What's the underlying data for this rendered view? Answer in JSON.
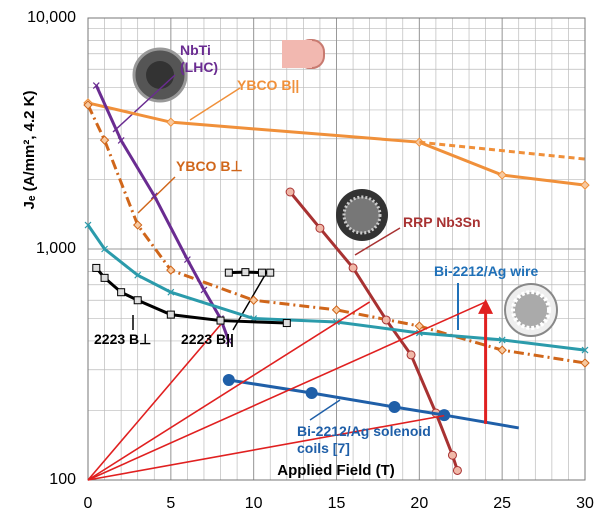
{
  "chart_data": {
    "type": "line",
    "ylabel": "Jₑ (A/mm², 4.2 K)",
    "xlabel": "Applied Field (T)",
    "xlim": [
      0,
      30
    ],
    "xticks": [
      0,
      5,
      10,
      15,
      20,
      25,
      30
    ],
    "ylim": [
      100,
      10000
    ],
    "yticks": [
      100,
      {
        "value": 1000,
        "label": "1,000"
      },
      {
        "value": 10000,
        "label": "10,000"
      }
    ],
    "log_y": true,
    "grid": true,
    "minor_grid": true,
    "series": [
      {
        "name": "YBCO B||",
        "color": "#f0903a",
        "marker": "diamond",
        "dash": "solid",
        "x": [
          0,
          5,
          20,
          25,
          30
        ],
        "values": [
          4290,
          3540,
          2900,
          2090,
          1890
        ]
      },
      {
        "color": "#f0903a",
        "marker": "none",
        "dash": "dashed",
        "x": [
          20,
          30
        ],
        "values": [
          2900,
          2450
        ]
      },
      {
        "name": "YBCO B⊥",
        "color": "#d0661a",
        "marker": "diamond",
        "dash": "dashdot",
        "x": [
          0,
          1,
          3,
          5,
          10,
          15,
          20,
          25,
          30
        ],
        "values": [
          4200,
          2960,
          1270,
          810,
          600,
          545,
          464,
          365,
          321
        ]
      },
      {
        "name": "NbTi (LHC)",
        "color": "#6a2c91",
        "marker": "x",
        "dash": "solid",
        "x": [
          0.5,
          2,
          4,
          6,
          7,
          8,
          8.5
        ],
        "values": [
          5100,
          2950,
          1700,
          900,
          665,
          500,
          400
        ]
      },
      {
        "name": "RRP Nb3Sn",
        "color": "#a83232",
        "marker": "circle",
        "dash": "solid",
        "x": [
          12.2,
          14,
          16,
          18,
          19.5,
          21,
          22,
          22.3
        ],
        "values": [
          1765,
          1230,
          828,
          493,
          348,
          195,
          128,
          110
        ]
      },
      {
        "name": "Bi-2212/Ag wire",
        "color": "#2b9bab",
        "marker": "x",
        "dash": "solid",
        "x": [
          0,
          1,
          3,
          5,
          10,
          15,
          20,
          25,
          30
        ],
        "values": [
          1270,
          1000,
          770,
          650,
          500,
          483,
          433,
          404,
          365
        ]
      },
      {
        "name": "2223 B⊥",
        "color": "#000000",
        "marker": "square",
        "dash": "solid",
        "x": [
          0.5,
          1,
          2,
          3,
          5,
          8,
          12
        ],
        "values": [
          828,
          750,
          650,
          600,
          520,
          490,
          478
        ]
      },
      {
        "name": "2223 B||",
        "color": "#000000",
        "marker": "square",
        "dash": "solid",
        "x": [
          8.5,
          9.5,
          10.5,
          11
        ],
        "values": [
          790,
          794,
          790,
          790
        ]
      },
      {
        "name": "Bi-2212/Ag solenoid coils [7]",
        "color": "#1f5fa8",
        "marker": "dot",
        "dash": "solid",
        "x": [
          8.5,
          13.5,
          18.5,
          21.5
        ],
        "values": [
          271,
          238,
          207,
          191
        ]
      },
      {
        "color": "#1f5fa8",
        "marker": "none",
        "dash": "solid",
        "x": [
          21.5,
          26
        ],
        "values": [
          191,
          168
        ]
      },
      {
        "color": "#e02020",
        "marker": "none",
        "dash": "solid",
        "x": [
          0,
          8
        ],
        "values": [
          100,
          470
        ]
      },
      {
        "color": "#e02020",
        "marker": "none",
        "dash": "solid",
        "x": [
          0,
          17
        ],
        "values": [
          100,
          590
        ]
      },
      {
        "color": "#e02020",
        "marker": "none",
        "dash": "solid",
        "x": [
          0,
          24
        ],
        "values": [
          100,
          590
        ]
      },
      {
        "color": "#e02020",
        "marker": "none",
        "dash": "solid",
        "x": [
          0,
          21.5
        ],
        "values": [
          100,
          190
        ]
      },
      {
        "color": "#e02020",
        "marker": "arrow",
        "dash": "solid",
        "x": [
          24,
          24
        ],
        "values": [
          175,
          590
        ]
      }
    ]
  }
}
